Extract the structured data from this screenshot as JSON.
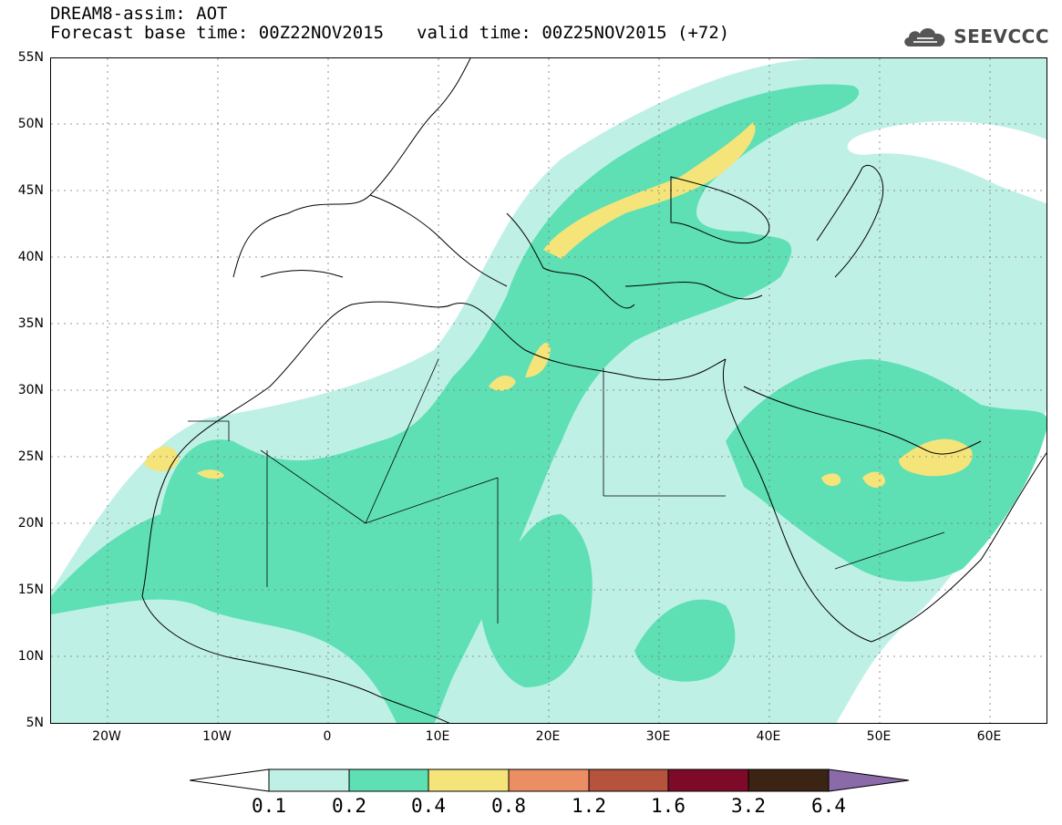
{
  "header": {
    "title_line1": "DREAM8-assim: AOT",
    "base_time": "Forecast base time: 00Z22NOV2015",
    "valid_time": "valid time: 00Z25NOV2015 (+72)",
    "logo_text": "SEEVCCC",
    "logo_icon": "cloud-icon"
  },
  "map": {
    "lat_labels": [
      "55N",
      "50N",
      "45N",
      "40N",
      "35N",
      "30N",
      "25N",
      "20N",
      "15N",
      "10N",
      "5N"
    ],
    "lon_labels": [
      "20W",
      "10W",
      "0",
      "10E",
      "20E",
      "30E",
      "40E",
      "50E",
      "60E"
    ]
  },
  "colorbar": {
    "levels": [
      "0.1",
      "0.2",
      "0.4",
      "0.8",
      "1.2",
      "1.6",
      "3.2",
      "6.4"
    ],
    "colors": [
      "#ffffff",
      "#bff0e6",
      "#5ee0b4",
      "#f5e47a",
      "#ec8e64",
      "#b5533c",
      "#7e0a2a",
      "#3c2414",
      "#8a6aa8"
    ]
  }
}
